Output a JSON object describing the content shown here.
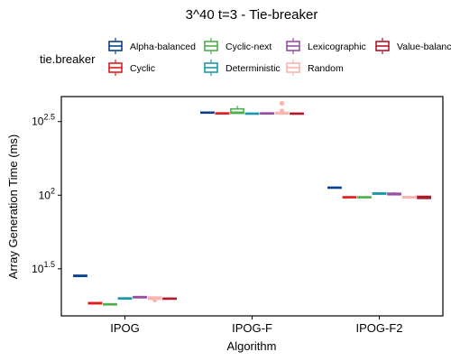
{
  "chart_data": {
    "type": "boxplot",
    "title": "3^40 t=3 - Tie-breaker",
    "xlabel": "Algorithm",
    "ylabel": "Array Generation Time (ms)",
    "yscale": "log10",
    "ylim_log10": [
      1.18,
      2.67
    ],
    "yticks": [
      {
        "log10": 1.5,
        "base": "10",
        "exp": "1.5"
      },
      {
        "log10": 2.0,
        "base": "10",
        "exp": "2"
      },
      {
        "log10": 2.5,
        "base": "10",
        "exp": "2.5"
      }
    ],
    "categories": [
      "IPOG",
      "IPOG-F",
      "IPOG-F2"
    ],
    "legend": {
      "title": "tie.breaker",
      "position": "top"
    },
    "series": [
      {
        "name": "Alpha-balanced",
        "color": "#0b3f8f",
        "boxes": [
          {
            "q1": 1.448,
            "median": 1.452,
            "q3": 1.456,
            "whisker_low": 1.446,
            "whisker_high": 1.458,
            "outliers": []
          },
          {
            "q1": 2.558,
            "median": 2.561,
            "q3": 2.564,
            "whisker_low": 2.556,
            "whisker_high": 2.566,
            "outliers": []
          },
          {
            "q1": 2.048,
            "median": 2.051,
            "q3": 2.054,
            "whisker_low": 2.046,
            "whisker_high": 2.056,
            "outliers": []
          }
        ]
      },
      {
        "name": "Cyclic",
        "color": "#e41a1c",
        "boxes": [
          {
            "q1": 1.262,
            "median": 1.266,
            "q3": 1.27,
            "whisker_low": 1.26,
            "whisker_high": 1.272,
            "outliers": []
          },
          {
            "q1": 2.554,
            "median": 2.556,
            "q3": 2.559,
            "whisker_low": 2.552,
            "whisker_high": 2.561,
            "outliers": []
          },
          {
            "q1": 1.983,
            "median": 1.986,
            "q3": 1.989,
            "whisker_low": 1.981,
            "whisker_high": 1.991,
            "outliers": []
          }
        ]
      },
      {
        "name": "Cyclic-next",
        "color": "#4daf4a",
        "boxes": [
          {
            "q1": 1.255,
            "median": 1.258,
            "q3": 1.262,
            "whisker_low": 1.253,
            "whisker_high": 1.264,
            "outliers": []
          },
          {
            "q1": 2.556,
            "median": 2.562,
            "q3": 2.586,
            "whisker_low": 2.552,
            "whisker_high": 2.608,
            "outliers": []
          },
          {
            "q1": 1.983,
            "median": 1.986,
            "q3": 1.989,
            "whisker_low": 1.981,
            "whisker_high": 1.991,
            "outliers": []
          }
        ]
      },
      {
        "name": "Deterministic",
        "color": "#1b9aaa",
        "boxes": [
          {
            "q1": 1.295,
            "median": 1.298,
            "q3": 1.302,
            "whisker_low": 1.293,
            "whisker_high": 1.304,
            "outliers": []
          },
          {
            "q1": 2.551,
            "median": 2.554,
            "q3": 2.557,
            "whisker_low": 2.549,
            "whisker_high": 2.559,
            "outliers": []
          },
          {
            "q1": 2.007,
            "median": 2.011,
            "q3": 2.015,
            "whisker_low": 2.005,
            "whisker_high": 2.017,
            "outliers": []
          }
        ]
      },
      {
        "name": "Lexicographic",
        "color": "#984ea3",
        "boxes": [
          {
            "q1": 1.303,
            "median": 1.307,
            "q3": 1.311,
            "whisker_low": 1.3,
            "whisker_high": 1.313,
            "outliers": []
          },
          {
            "q1": 2.552,
            "median": 2.556,
            "q3": 2.559,
            "whisker_low": 2.55,
            "whisker_high": 2.561,
            "outliers": []
          },
          {
            "q1": 2.003,
            "median": 2.008,
            "q3": 2.013,
            "whisker_low": 1.999,
            "whisker_high": 2.02,
            "outliers": []
          }
        ]
      },
      {
        "name": "Random",
        "color": "#fbb4ae",
        "boxes": [
          {
            "q1": 1.293,
            "median": 1.301,
            "q3": 1.308,
            "whisker_low": 1.289,
            "whisker_high": 1.311,
            "outliers": [
              1.288
            ]
          },
          {
            "q1": 2.552,
            "median": 2.556,
            "q3": 2.562,
            "whisker_low": 2.55,
            "whisker_high": 2.578,
            "outliers": [
              2.572,
              2.624
            ]
          },
          {
            "q1": 1.981,
            "median": 1.985,
            "q3": 1.99,
            "whisker_low": 1.978,
            "whisker_high": 1.993,
            "outliers": []
          }
        ]
      },
      {
        "name": "Value-balanced",
        "color": "#b2182b",
        "boxes": [
          {
            "q1": 1.294,
            "median": 1.297,
            "q3": 1.3,
            "whisker_low": 1.292,
            "whisker_high": 1.302,
            "outliers": []
          },
          {
            "q1": 2.551,
            "median": 2.554,
            "q3": 2.557,
            "whisker_low": 2.549,
            "whisker_high": 2.559,
            "outliers": []
          },
          {
            "q1": 1.978,
            "median": 1.985,
            "q3": 1.992,
            "whisker_low": 1.974,
            "whisker_high": 1.995,
            "outliers": []
          }
        ]
      }
    ]
  }
}
